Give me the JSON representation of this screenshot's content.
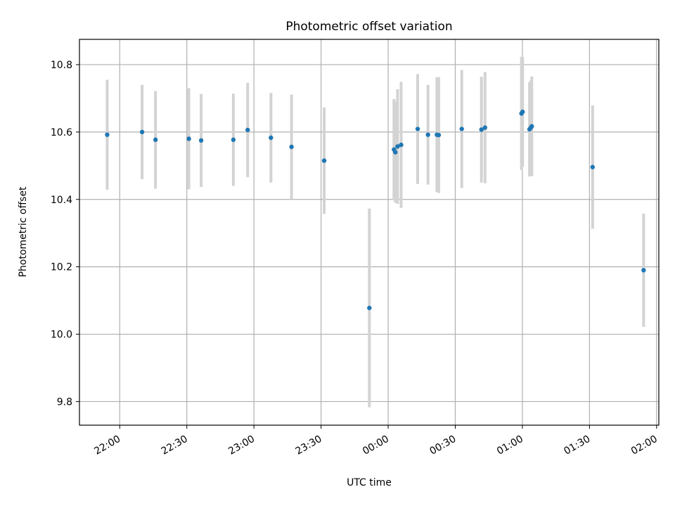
{
  "chart_data": {
    "type": "scatter",
    "title": "Photometric offset variation",
    "xlabel": "UTC time",
    "ylabel": "Photometric offset",
    "x_unit": "minutes after 22:00 UTC",
    "xlim": [
      -18,
      241
    ],
    "ylim": [
      9.73,
      10.875
    ],
    "grid": true,
    "x_ticks": [
      {
        "value": 0,
        "label": "22:00"
      },
      {
        "value": 30,
        "label": "22:30"
      },
      {
        "value": 60,
        "label": "23:00"
      },
      {
        "value": 90,
        "label": "23:30"
      },
      {
        "value": 120,
        "label": "00:00"
      },
      {
        "value": 150,
        "label": "00:30"
      },
      {
        "value": 180,
        "label": "01:00"
      },
      {
        "value": 210,
        "label": "01:30"
      },
      {
        "value": 240,
        "label": "02:00"
      }
    ],
    "y_ticks": [
      {
        "value": 9.8,
        "label": "9.8"
      },
      {
        "value": 10.0,
        "label": "10.0"
      },
      {
        "value": 10.2,
        "label": "10.2"
      },
      {
        "value": 10.4,
        "label": "10.4"
      },
      {
        "value": 10.6,
        "label": "10.6"
      },
      {
        "value": 10.8,
        "label": "10.8"
      }
    ],
    "point_color": "#1f77b4",
    "errorbar_color": "#d3d3d3",
    "points": [
      {
        "x": -5.6,
        "y": 10.592,
        "err": 0.163
      },
      {
        "x": 10.0,
        "y": 10.6,
        "err": 0.14
      },
      {
        "x": 16.0,
        "y": 10.577,
        "err": 0.145
      },
      {
        "x": 30.9,
        "y": 10.58,
        "err": 0.15
      },
      {
        "x": 36.4,
        "y": 10.575,
        "err": 0.138
      },
      {
        "x": 50.8,
        "y": 10.577,
        "err": 0.137
      },
      {
        "x": 57.2,
        "y": 10.606,
        "err": 0.14
      },
      {
        "x": 67.6,
        "y": 10.583,
        "err": 0.133
      },
      {
        "x": 76.8,
        "y": 10.556,
        "err": 0.155
      },
      {
        "x": 91.4,
        "y": 10.515,
        "err": 0.158
      },
      {
        "x": 111.6,
        "y": 10.078,
        "err": 0.295
      },
      {
        "x": 122.6,
        "y": 10.548,
        "err": 0.15
      },
      {
        "x": 123.2,
        "y": 10.54,
        "err": 0.15
      },
      {
        "x": 124.2,
        "y": 10.557,
        "err": 0.17
      },
      {
        "x": 125.8,
        "y": 10.562,
        "err": 0.187
      },
      {
        "x": 133.2,
        "y": 10.609,
        "err": 0.163
      },
      {
        "x": 137.8,
        "y": 10.592,
        "err": 0.148
      },
      {
        "x": 141.8,
        "y": 10.592,
        "err": 0.17
      },
      {
        "x": 142.6,
        "y": 10.591,
        "err": 0.172
      },
      {
        "x": 152.9,
        "y": 10.609,
        "err": 0.175
      },
      {
        "x": 161.7,
        "y": 10.607,
        "err": 0.157
      },
      {
        "x": 163.3,
        "y": 10.613,
        "err": 0.165
      },
      {
        "x": 179.6,
        "y": 10.655,
        "err": 0.168
      },
      {
        "x": 180.1,
        "y": 10.66,
        "err": 0.163
      },
      {
        "x": 183.2,
        "y": 10.608,
        "err": 0.14
      },
      {
        "x": 183.8,
        "y": 10.613,
        "err": 0.14
      },
      {
        "x": 184.2,
        "y": 10.617,
        "err": 0.148
      },
      {
        "x": 211.4,
        "y": 10.496,
        "err": 0.183
      },
      {
        "x": 234.2,
        "y": 10.19,
        "err": 0.168
      }
    ]
  }
}
